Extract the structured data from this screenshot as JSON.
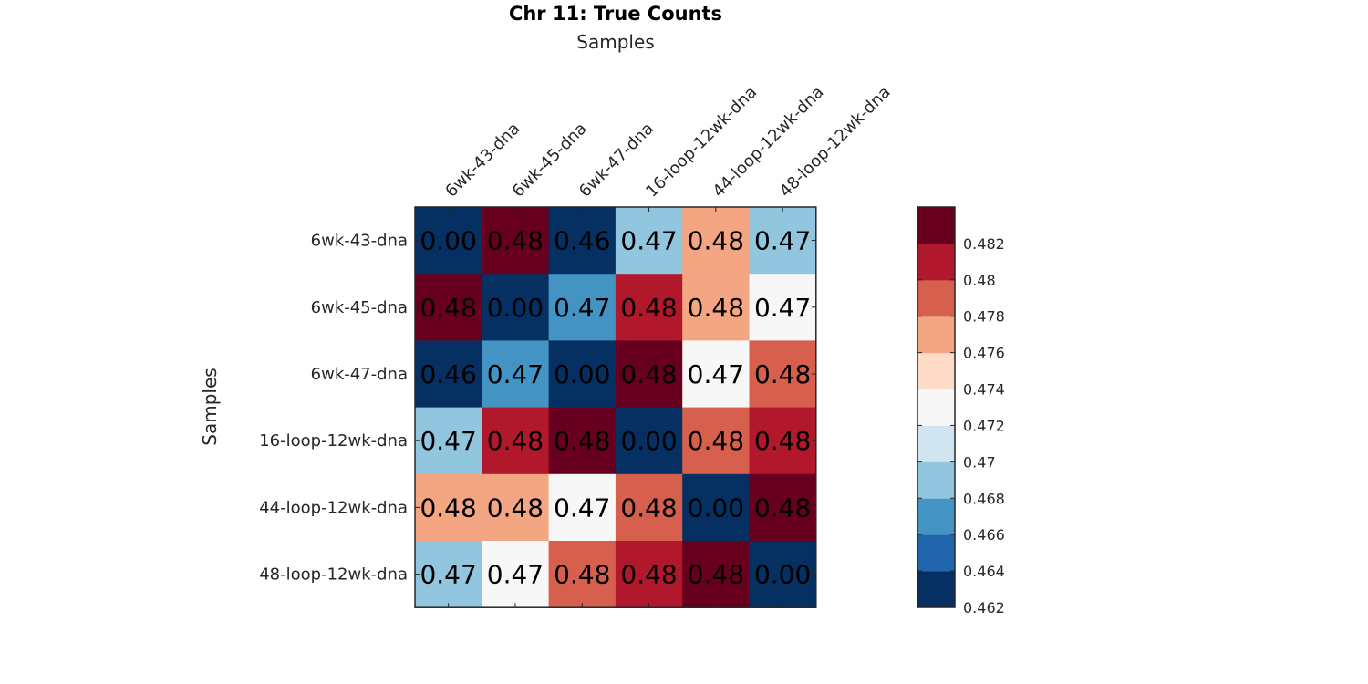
{
  "chart_data": {
    "type": "heatmap",
    "title": "Chr 11: True Counts",
    "xlabel": "Samples",
    "ylabel": "Samples",
    "x_categories": [
      "6wk-43-dna",
      "6wk-45-dna",
      "6wk-47-dna",
      "16-loop-12wk-dna",
      "44-loop-12wk-dna",
      "48-loop-12wk-dna"
    ],
    "y_categories": [
      "6wk-43-dna",
      "6wk-45-dna",
      "6wk-47-dna",
      "16-loop-12wk-dna",
      "44-loop-12wk-dna",
      "48-loop-12wk-dna"
    ],
    "values": [
      [
        0.0,
        0.483,
        0.462,
        0.469,
        0.477,
        0.469
      ],
      [
        0.483,
        0.0,
        0.467,
        0.481,
        0.477,
        0.473
      ],
      [
        0.462,
        0.467,
        0.0,
        0.483,
        0.473,
        0.479
      ],
      [
        0.469,
        0.481,
        0.483,
        0.0,
        0.479,
        0.481
      ],
      [
        0.477,
        0.477,
        0.473,
        0.479,
        0.0,
        0.483
      ],
      [
        0.469,
        0.473,
        0.479,
        0.481,
        0.483,
        0.0
      ]
    ],
    "cell_labels": [
      [
        "0.00",
        "0.48",
        "0.46",
        "0.47",
        "0.48",
        "0.47"
      ],
      [
        "0.48",
        "0.00",
        "0.47",
        "0.48",
        "0.48",
        "0.47"
      ],
      [
        "0.46",
        "0.47",
        "0.00",
        "0.48",
        "0.47",
        "0.48"
      ],
      [
        "0.47",
        "0.48",
        "0.48",
        "0.00",
        "0.48",
        "0.48"
      ],
      [
        "0.48",
        "0.48",
        "0.47",
        "0.48",
        "0.00",
        "0.48"
      ],
      [
        "0.47",
        "0.47",
        "0.48",
        "0.48",
        "0.48",
        "0.00"
      ]
    ],
    "colorbar": {
      "range": [
        0.462,
        0.484
      ],
      "ticks": [
        0.462,
        0.464,
        0.466,
        0.468,
        0.47,
        0.472,
        0.474,
        0.476,
        0.478,
        0.48,
        0.482
      ],
      "tick_labels": [
        "0.462",
        "0.464",
        "0.466",
        "0.468",
        "0.47",
        "0.472",
        "0.474",
        "0.476",
        "0.478",
        "0.48",
        "0.482"
      ],
      "colors": [
        "#053061",
        "#2166ac",
        "#4393c3",
        "#92c5de",
        "#d1e5f0",
        "#f7f7f7",
        "#fddbc7",
        "#f4a582",
        "#d6604d",
        "#b2182b",
        "#67001f"
      ]
    },
    "x_axis_position": "top",
    "grid": false
  }
}
